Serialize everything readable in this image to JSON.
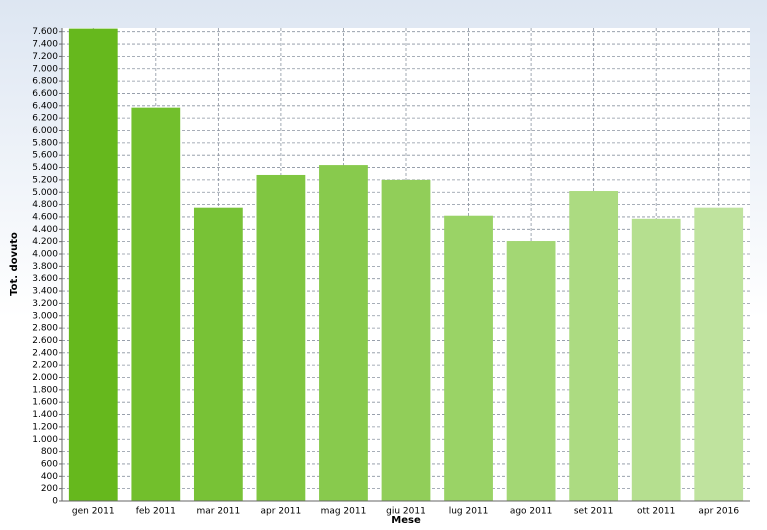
{
  "chart_data": {
    "type": "bar",
    "x_label": "Mese",
    "y_label": "Tot. dovuto",
    "categories": [
      "gen 2011",
      "feb 2011",
      "mar 2011",
      "apr 2011",
      "mag 2011",
      "giu 2011",
      "lug 2011",
      "ago 2011",
      "set 2011",
      "ott 2011",
      "apr 2016"
    ],
    "values": [
      7650,
      6370,
      4750,
      5280,
      5440,
      5200,
      4620,
      4210,
      5020,
      4570,
      4750
    ],
    "colors": [
      "#66b81d",
      "#72bf2c",
      "#78c236",
      "#80c641",
      "#88ca4d",
      "#91ce59",
      "#9ad366",
      "#a3d774",
      "#acdb81",
      "#b5df8f",
      "#bfe39e"
    ],
    "ylim": [
      0,
      7660
    ],
    "yticks": [
      0,
      200,
      400,
      600,
      800,
      {
        "value": 1000,
        "label": "1.000"
      },
      {
        "value": 1200,
        "label": "1.200"
      },
      {
        "value": 1400,
        "label": "1.400"
      },
      {
        "value": 1600,
        "label": "1.600"
      },
      {
        "value": 1800,
        "label": "1.800"
      },
      {
        "value": 2000,
        "label": "2.000"
      },
      {
        "value": 2200,
        "label": "2.200"
      },
      {
        "value": 2400,
        "label": "2.400"
      },
      {
        "value": 2600,
        "label": "2.600"
      },
      {
        "value": 2800,
        "label": "2.800"
      },
      {
        "value": 3000,
        "label": "3.000"
      },
      {
        "value": 3200,
        "label": "3.200"
      },
      {
        "value": 3400,
        "label": "3.400"
      },
      {
        "value": 3600,
        "label": "3.600"
      },
      {
        "value": 3800,
        "label": "3.800"
      },
      {
        "value": 4000,
        "label": "4.000"
      },
      {
        "value": 4200,
        "label": "4.200"
      },
      {
        "value": 4400,
        "label": "4.400"
      },
      {
        "value": 4600,
        "label": "4.600"
      },
      {
        "value": 4800,
        "label": "4.800"
      },
      {
        "value": 5000,
        "label": "5.000"
      },
      {
        "value": 5200,
        "label": "5.200"
      },
      {
        "value": 5400,
        "label": "5.400"
      },
      {
        "value": 5600,
        "label": "5.600"
      },
      {
        "value": 5800,
        "label": "5.800"
      },
      {
        "value": 6000,
        "label": "6.000"
      },
      {
        "value": 6200,
        "label": "6.200"
      },
      {
        "value": 6400,
        "label": "6.400"
      },
      {
        "value": 6600,
        "label": "6.600"
      },
      {
        "value": 6800,
        "label": "6.800"
      },
      {
        "value": 7000,
        "label": "7.000"
      },
      {
        "value": 7200,
        "label": "7.200"
      },
      {
        "value": 7400,
        "label": "7.400"
      },
      {
        "value": 7600,
        "label": "7.600"
      }
    ],
    "grid": true
  }
}
